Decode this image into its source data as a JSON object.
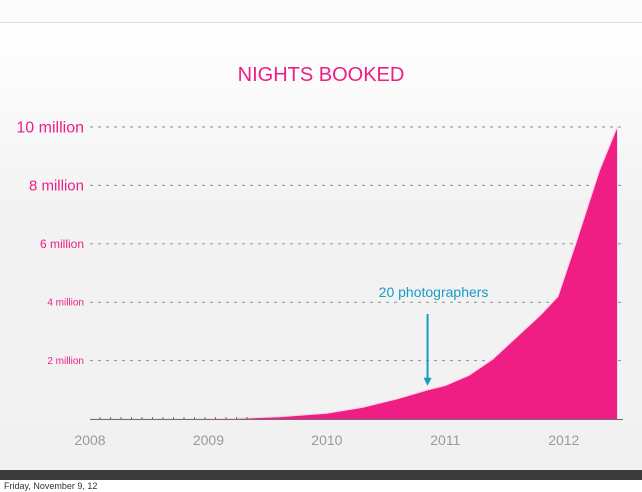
{
  "footer": {
    "date": "Friday, November 9, 12"
  },
  "colors": {
    "accent": "#ee1e84",
    "annotation": "#199bc6",
    "axis_text": "#9a9a9a"
  },
  "chart_data": {
    "type": "area",
    "title": "NIGHTS BOOKED",
    "xlabel": "",
    "ylabel": "",
    "x_ticks": [
      "2008",
      "2009",
      "2010",
      "2011",
      "2012"
    ],
    "y_ticks": [
      {
        "value": 2000000,
        "label": "2 million"
      },
      {
        "value": 4000000,
        "label": "4 million"
      },
      {
        "value": 6000000,
        "label": "6 million"
      },
      {
        "value": 8000000,
        "label": "8 million"
      },
      {
        "value": 10000000,
        "label": "10 million"
      }
    ],
    "xlim": [
      2008,
      2012.5
    ],
    "ylim": [
      0,
      10000000
    ],
    "grid": "horizontal dashed",
    "series": [
      {
        "x": [
          2008.0,
          2009.0,
          2009.3,
          2009.6,
          2010.0,
          2010.3,
          2010.6,
          2010.85,
          2011.0,
          2011.2,
          2011.4,
          2011.6,
          2011.8,
          2011.95,
          2012.1,
          2012.3,
          2012.45
        ],
        "values": [
          0,
          0,
          30000,
          80000,
          200000,
          400000,
          700000,
          1000000,
          1150000,
          1500000,
          2050000,
          2800000,
          3550000,
          4200000,
          6000000,
          8500000,
          10000000
        ]
      }
    ],
    "annotations": [
      {
        "text": "20 photographers",
        "x": 2010.85,
        "y": 1000000
      }
    ]
  }
}
